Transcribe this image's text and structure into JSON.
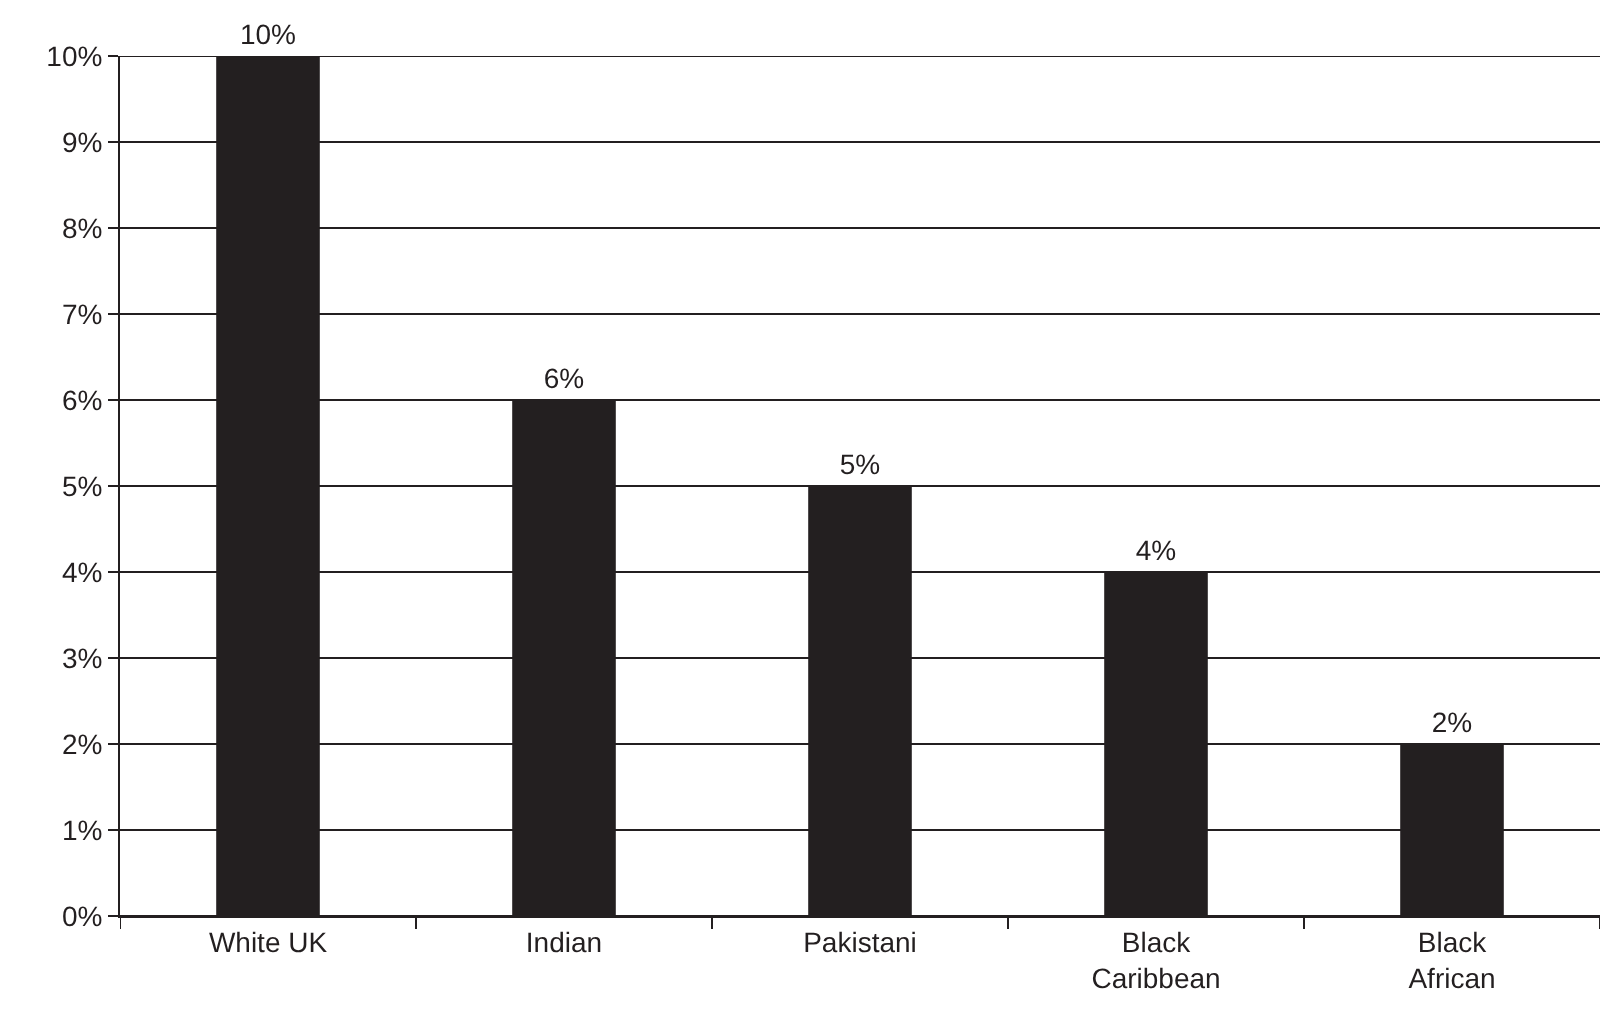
{
  "chart_data": {
    "type": "bar",
    "categories": [
      "White UK",
      "Indian",
      "Pakistani",
      "Black Caribbean",
      "Black African"
    ],
    "values": [
      10,
      6,
      5,
      4,
      2
    ],
    "value_labels": [
      "10%",
      "6%",
      "5%",
      "4%",
      "2%"
    ],
    "color": "#231f20",
    "ylim": [
      0,
      10
    ],
    "yticks": [
      {
        "value": 0,
        "label": "0%"
      },
      {
        "value": 1,
        "label": "1%"
      },
      {
        "value": 2,
        "label": "2%"
      },
      {
        "value": 3,
        "label": "3%"
      },
      {
        "value": 4,
        "label": "4%"
      },
      {
        "value": 5,
        "label": "5%"
      },
      {
        "value": 6,
        "label": "6%"
      },
      {
        "value": 7,
        "label": "7%"
      },
      {
        "value": 8,
        "label": "8%"
      },
      {
        "value": 9,
        "label": "9%"
      },
      {
        "value": 10,
        "label": "10%"
      }
    ],
    "grid": "y"
  }
}
